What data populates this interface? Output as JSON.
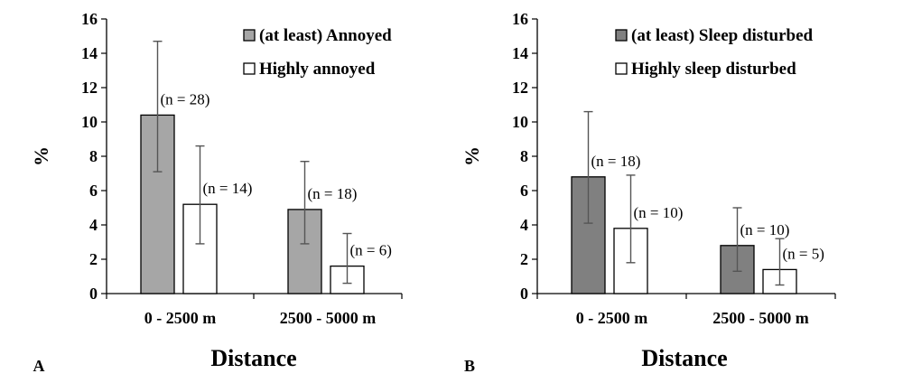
{
  "chart_data": [
    {
      "type": "bar",
      "panel_label": "A",
      "categories": [
        "0 - 2500 m",
        "2500 - 5000 m"
      ],
      "xlabel": "Distance",
      "ylabel": "%",
      "ylim": [
        0,
        16
      ],
      "yticks": [
        "0",
        "2",
        "4",
        "6",
        "8",
        "10",
        "12",
        "14",
        "16"
      ],
      "legend_position": "top-right",
      "series": [
        {
          "name": "(at least) Annoyed",
          "color": "#a6a6a6",
          "values": [
            10.4,
            4.9
          ],
          "error_low": [
            7.1,
            2.9
          ],
          "error_high": [
            14.7,
            7.7
          ],
          "labels": [
            "(n = 28)",
            "(n = 18)"
          ]
        },
        {
          "name": "Highly annoyed",
          "color": "#ffffff",
          "values": [
            5.2,
            1.6
          ],
          "error_low": [
            2.9,
            0.6
          ],
          "error_high": [
            8.6,
            3.5
          ],
          "labels": [
            "(n = 14)",
            "(n = 6)"
          ]
        }
      ]
    },
    {
      "type": "bar",
      "panel_label": "B",
      "categories": [
        "0 - 2500 m",
        "2500 - 5000 m"
      ],
      "xlabel": "Distance",
      "ylabel": "%",
      "ylim": [
        0,
        16
      ],
      "yticks": [
        "0",
        "2",
        "4",
        "6",
        "8",
        "10",
        "12",
        "14",
        "16"
      ],
      "legend_position": "top-right",
      "series": [
        {
          "name": "(at least) Sleep disturbed",
          "color": "#808080",
          "values": [
            6.8,
            2.8
          ],
          "error_low": [
            4.1,
            1.3
          ],
          "error_high": [
            10.6,
            5.0
          ],
          "labels": [
            "(n = 18)",
            "(n = 10)"
          ]
        },
        {
          "name": "Highly sleep disturbed",
          "color": "#ffffff",
          "values": [
            3.8,
            1.4
          ],
          "error_low": [
            1.8,
            0.5
          ],
          "error_high": [
            6.9,
            3.2
          ],
          "labels": [
            "(n = 10)",
            "(n = 5)"
          ]
        }
      ]
    }
  ]
}
